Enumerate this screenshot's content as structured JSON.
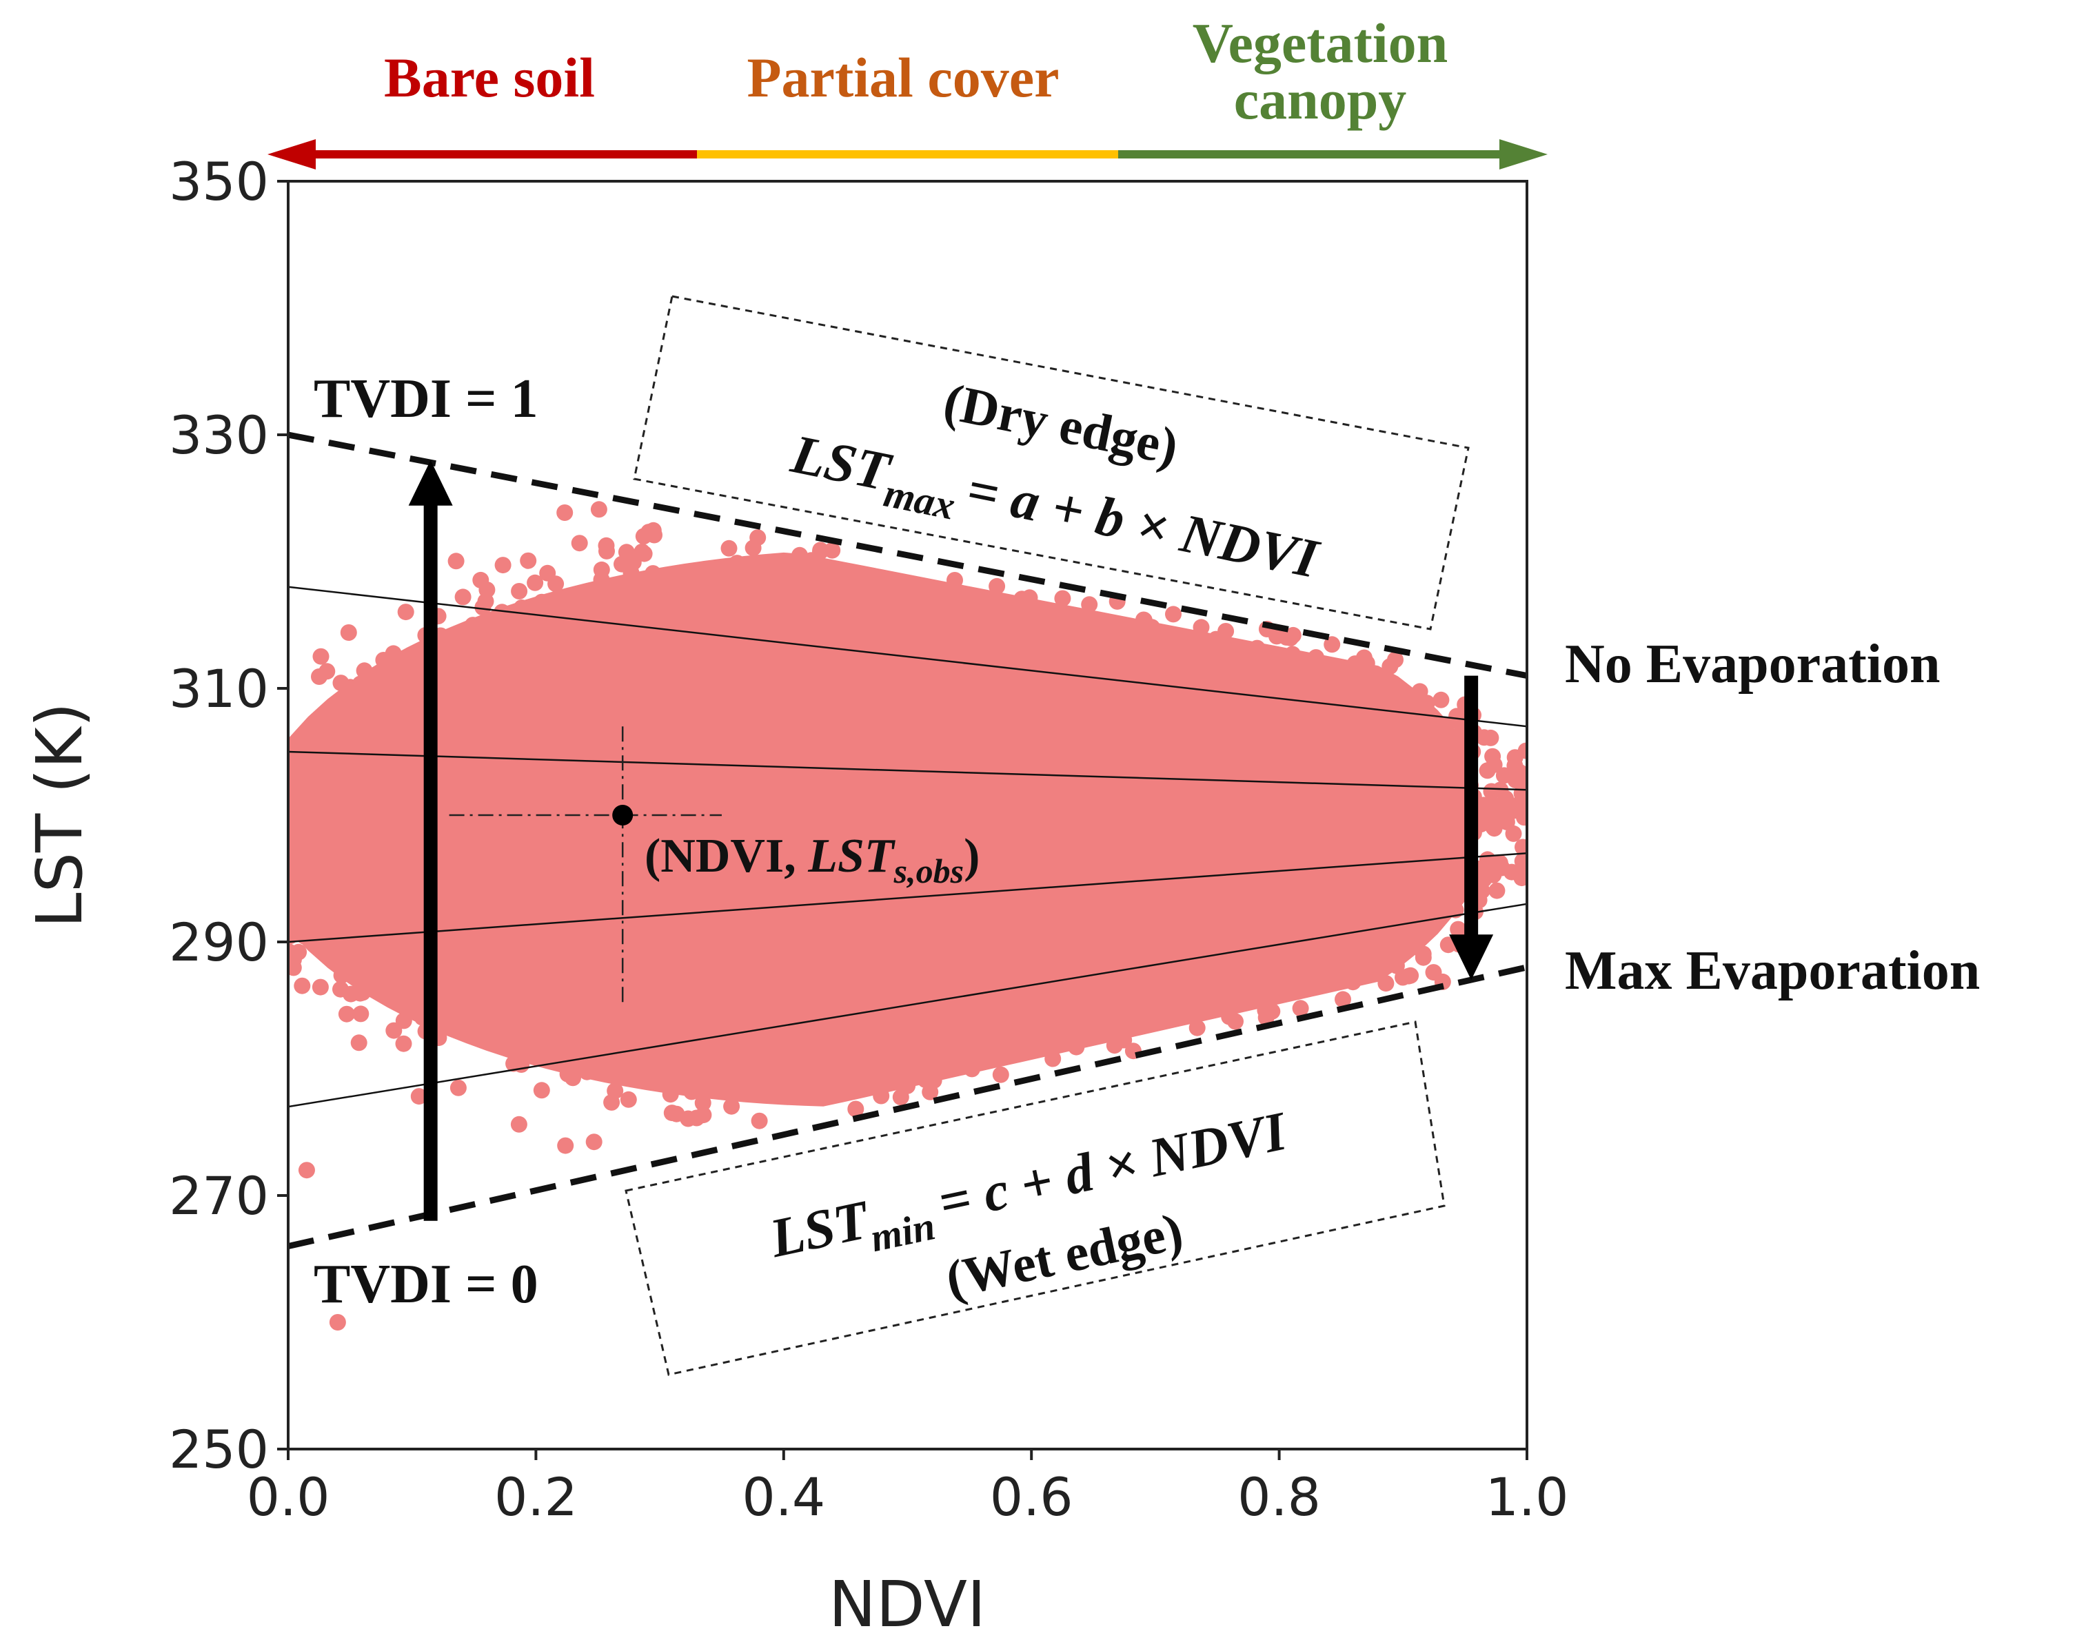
{
  "chart_data": {
    "type": "scatter",
    "title": "",
    "xlabel": "NDVI",
    "ylabel": "LST (K)",
    "xlim": [
      0.0,
      1.0
    ],
    "ylim": [
      250,
      350
    ],
    "x_ticks": [
      "0.0",
      "0.2",
      "0.4",
      "0.6",
      "0.8",
      "1.0"
    ],
    "x_tick_values": [
      0.0,
      0.2,
      0.4,
      0.6,
      0.8,
      1.0
    ],
    "y_ticks": [
      "250",
      "270",
      "290",
      "310",
      "330",
      "350"
    ],
    "y_tick_values": [
      250,
      270,
      290,
      310,
      330,
      350
    ],
    "grid": false,
    "point_color": "#f08080",
    "cloud": {
      "description_series": "LST vs NDVI scatter",
      "x_center": 0.47,
      "x_halfwidth": 0.47,
      "y_center": 299,
      "y_halfheight_at_center": 22
    },
    "dry_edge": {
      "name": "Dry edge",
      "x": [
        0.0,
        1.0
      ],
      "y": [
        330,
        311
      ],
      "style": "dashed"
    },
    "wet_edge": {
      "name": "Wet edge",
      "x": [
        0.0,
        1.0
      ],
      "y": [
        266,
        288
      ],
      "style": "dashed"
    },
    "isolines": [
      {
        "x": [
          0.0,
          1.0
        ],
        "y": [
          318,
          307
        ]
      },
      {
        "x": [
          0.0,
          1.0
        ],
        "y": [
          305,
          302
        ]
      },
      {
        "x": [
          0.0,
          1.0
        ],
        "y": [
          290,
          297
        ]
      },
      {
        "x": [
          0.0,
          1.0
        ],
        "y": [
          277,
          293
        ]
      }
    ],
    "observation_point": {
      "x": 0.27,
      "y": 300,
      "label_prefix": "(NDVI, ",
      "label_var": "LST",
      "label_sub": "s,obs",
      "label_suffix": ")"
    },
    "tvdi_arrow": {
      "x": 0.115,
      "y_from": 268,
      "y_to": 328
    },
    "evap_arrow": {
      "x": 0.955,
      "y_from": 311,
      "y_to": 287
    },
    "cover_bar": [
      {
        "label": "Bare soil",
        "x_from": 0.0,
        "x_to": 0.33,
        "color": "#c00000"
      },
      {
        "label": "Partial cover",
        "x_from": 0.33,
        "x_to": 0.67,
        "color": "#ffc000"
      },
      {
        "label_line1": "Vegetation",
        "label_line2": "canopy",
        "x_from": 0.67,
        "x_to": 1.0,
        "color": "#548235"
      }
    ],
    "cover_label_colors": {
      "bare": "#c00000",
      "partial": "#c55a11",
      "veg": "#548235"
    },
    "annotations": {
      "tvdi_one": "TVDI = 1",
      "tvdi_zero": "TVDI = 0",
      "no_evap": "No Evaporation",
      "max_evap": "Max Evaporation",
      "dry_title": "(Dry edge)",
      "dry_eq_var": "LST",
      "dry_eq_sub": "max",
      "dry_eq_rhs": "= a + b × NDVI",
      "wet_eq_var": "LST",
      "wet_eq_sub": "min",
      "wet_eq_rhs": "= c + d × NDVI",
      "wet_title": "(Wet edge)"
    }
  }
}
